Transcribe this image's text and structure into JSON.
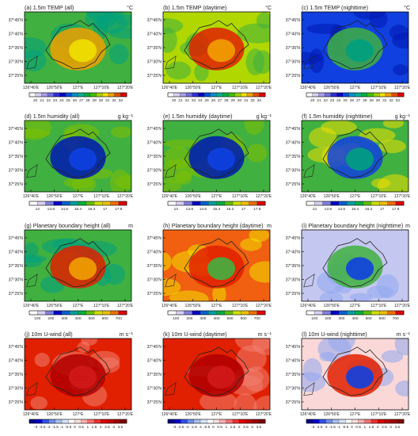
{
  "chart_data": [
    {
      "panel": "a",
      "type": "heatmap",
      "title": "(a) 1.5m TEMP (all)",
      "unit": "°C",
      "colorbar": {
        "ticks": [
          "20",
          "21",
          "22",
          "23",
          "24",
          "25",
          "26",
          "27",
          "28",
          "29",
          "30",
          "31",
          "32",
          "33"
        ]
      },
      "map": {
        "base": "green",
        "center": "orange",
        "peak": "yellow",
        "edge": "teal"
      }
    },
    {
      "panel": "b",
      "type": "heatmap",
      "title": "(b) 1.5m TEMP (daytime)",
      "unit": "°C",
      "colorbar": {
        "ticks": [
          "20",
          "21",
          "22",
          "23",
          "24",
          "25",
          "26",
          "27",
          "28",
          "29",
          "30",
          "31",
          "32",
          "33"
        ]
      },
      "map": {
        "base": "greenyellow",
        "center": "red",
        "peak": "orange",
        "edge": "green"
      }
    },
    {
      "panel": "c",
      "type": "heatmap",
      "title": "(c) 1.5m TEMP (nighttime)",
      "unit": "°C",
      "colorbar": {
        "ticks": [
          "20",
          "21",
          "22",
          "23",
          "24",
          "25",
          "26",
          "27",
          "28",
          "29",
          "30",
          "31",
          "32",
          "33"
        ]
      },
      "map": {
        "base": "blue",
        "center": "green",
        "peak": "teal",
        "edge": "navy"
      }
    },
    {
      "panel": "d",
      "type": "heatmap",
      "title": "(d) 1.5m humidity (all)",
      "unit": "g kg⁻¹",
      "colorbar": {
        "ticks": [
          "13",
          "13.8",
          "14.6",
          "15.4",
          "16.2",
          "17",
          "17.8"
        ]
      },
      "map": {
        "base": "green",
        "center": "navy",
        "peak": "blue",
        "edge": "yellowgreen"
      }
    },
    {
      "panel": "e",
      "type": "heatmap",
      "title": "(e) 1.5m humidity (daytime)",
      "unit": "g kg⁻¹",
      "colorbar": {
        "ticks": [
          "13",
          "13.8",
          "14.6",
          "15.4",
          "16.2",
          "17",
          "17.8"
        ]
      },
      "map": {
        "base": "green",
        "center": "navy",
        "peak": "blue",
        "edge": "yellowgreen"
      }
    },
    {
      "panel": "f",
      "type": "heatmap",
      "title": "(f) 1.5m humidity (nighttime)",
      "unit": "g kg⁻¹",
      "colorbar": {
        "ticks": [
          "13",
          "13.8",
          "14.6",
          "15.4",
          "16.2",
          "17",
          "17.8"
        ]
      },
      "map": {
        "base": "green",
        "center": "blue",
        "peak": "teal",
        "edge": "yellow"
      }
    },
    {
      "panel": "g",
      "type": "heatmap",
      "title": "(g) Planetary boundary height (all)",
      "unit": "m",
      "colorbar": {
        "ticks": [
          "100",
          "200",
          "300",
          "400",
          "500",
          "600",
          "700"
        ]
      },
      "map": {
        "base": "green",
        "center": "red",
        "peak": "orange",
        "edge": "teal"
      }
    },
    {
      "panel": "h",
      "type": "heatmap",
      "title": "(h) Planetary boundary height (daytime)",
      "unit": "m",
      "colorbar": {
        "ticks": [
          "100",
          "200",
          "300",
          "400",
          "500",
          "600",
          "700"
        ]
      },
      "map": {
        "base": "orangered",
        "center": "red",
        "peak": "green",
        "edge": "yellow"
      }
    },
    {
      "panel": "i",
      "type": "heatmap",
      "title": "(i) Planetary boundary height (nighttime)",
      "unit": "m",
      "colorbar": {
        "ticks": [
          "100",
          "200",
          "300",
          "400",
          "500",
          "600",
          "700"
        ]
      },
      "map": {
        "base": "lavender",
        "center": "green",
        "peak": "blue",
        "edge": "lightblue"
      }
    },
    {
      "panel": "j",
      "type": "heatmap",
      "title": "(j) 10m U-wind (all)",
      "unit": "m s⁻¹",
      "colorbar": {
        "ticks": [
          "-3",
          "-2.5",
          "-2",
          "-1.5",
          "-1",
          "-0.5",
          "0",
          "0.5",
          "1",
          "1.5",
          "2",
          "2.5",
          "3",
          "3.5"
        ]
      },
      "map": {
        "base": "red",
        "center": "darkred",
        "peak": "crimson",
        "edge": "salmon"
      }
    },
    {
      "panel": "k",
      "type": "heatmap",
      "title": "(k) 10m U-wind (daytime)",
      "unit": "m s⁻¹",
      "colorbar": {
        "ticks": [
          "-3",
          "-2.5",
          "-2",
          "-1.5",
          "-1",
          "-0.5",
          "0",
          "0.5",
          "1",
          "1.5",
          "2",
          "2.5",
          "3",
          "3.5"
        ]
      },
      "map": {
        "base": "red",
        "center": "darkred",
        "peak": "crimson",
        "edge": "salmon"
      }
    },
    {
      "panel": "l",
      "type": "heatmap",
      "title": "(l) 10m U-wind (nighttime)",
      "unit": "m s⁻¹",
      "colorbar": {
        "ticks": [
          "-3",
          "-2.5",
          "-2",
          "-1.5",
          "-1",
          "-0.5",
          "0",
          "0.5",
          "1",
          "1.5",
          "2",
          "2.5",
          "3",
          "3.5"
        ]
      },
      "map": {
        "base": "mistyrose",
        "center": "red",
        "peak": "blue",
        "edge": "lightblue"
      }
    }
  ],
  "axes": {
    "lat_ticks": [
      "37°45'N",
      "37°40'N",
      "37°35'N",
      "37°30'N",
      "37°25'N"
    ],
    "lon_ticks": [
      "126°40'E",
      "126°50'E",
      "127°E",
      "127°10'E",
      "127°20'E"
    ]
  },
  "colors": {
    "temp": [
      "#ffffff",
      "#d8d0f2",
      "#a8a0e8",
      "#7070e0",
      "#3030d8",
      "#0000c8",
      "#0050e0",
      "#0090c8",
      "#00b090",
      "#00b040",
      "#40c000",
      "#a0d000",
      "#f0e000",
      "#f0a000",
      "#e05000",
      "#e00000"
    ],
    "humid": [
      "#ffffff",
      "#d8d0f2",
      "#8080e0",
      "#0000c8",
      "#0060d0",
      "#00a0a0",
      "#00b040",
      "#60c000",
      "#d0e000",
      "#f0c000",
      "#f07000",
      "#e00000"
    ],
    "pbl": [
      "#ffffff",
      "#d8d0f2",
      "#8080e0",
      "#0000c8",
      "#0060d0",
      "#00a0a0",
      "#00b040",
      "#60c000",
      "#d0e000",
      "#f0c000",
      "#f07000",
      "#e00000"
    ],
    "wind": [
      "#00008c",
      "#0000d0",
      "#3050f0",
      "#7090f0",
      "#a8c0f0",
      "#d8e4f8",
      "#ffffff",
      "#ffe0e0",
      "#ffb0b0",
      "#ff7070",
      "#f03030",
      "#e00000",
      "#c00000",
      "#a00000",
      "#800000"
    ]
  }
}
